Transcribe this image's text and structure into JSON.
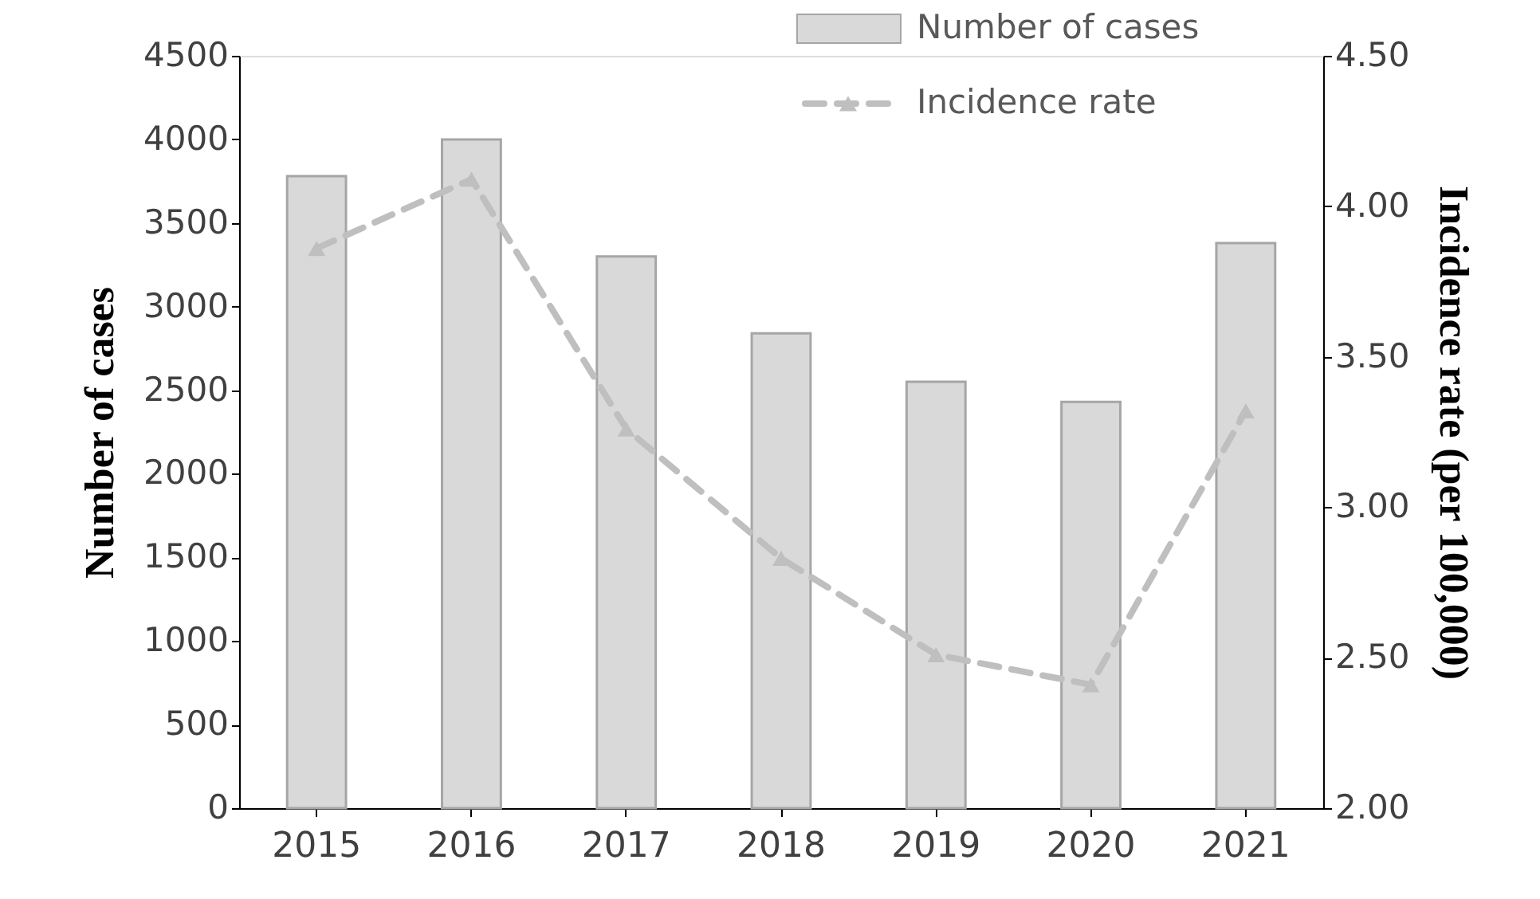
{
  "chart_data": {
    "type": "bar",
    "categories": [
      "2015",
      "2016",
      "2017",
      "2018",
      "2019",
      "2020",
      "2021"
    ],
    "series": [
      {
        "name": "Number of cases",
        "type": "bar",
        "color": "#d9d9d9",
        "values": [
          3780,
          4000,
          3300,
          2840,
          2550,
          2430,
          3380
        ]
      },
      {
        "name": "Incidence rate",
        "type": "line",
        "axis": "y2",
        "color": "#bfbfbf",
        "marker": "triangle",
        "line_style": "dashed",
        "values": [
          3.86,
          4.09,
          3.26,
          2.83,
          2.51,
          2.41,
          3.32
        ]
      }
    ],
    "ylabel": "Number of cases",
    "y2label": "Incidence rate  (per 100,000)",
    "ylim": [
      0,
      4500
    ],
    "yticks": [
      0,
      500,
      1000,
      1500,
      2000,
      2500,
      3000,
      3500,
      4000,
      4500
    ],
    "y2lim": [
      2.0,
      4.5
    ],
    "y2ticks": [
      {
        "value": 2.0,
        "label": "2.00"
      },
      {
        "value": 2.5,
        "label": "2.50"
      },
      {
        "value": 3.0,
        "label": "3.00"
      },
      {
        "value": 3.5,
        "label": "3.50"
      },
      {
        "value": 4.0,
        "label": "4.00"
      },
      {
        "value": 4.5,
        "label": "4.50"
      }
    ],
    "legend": "top"
  }
}
